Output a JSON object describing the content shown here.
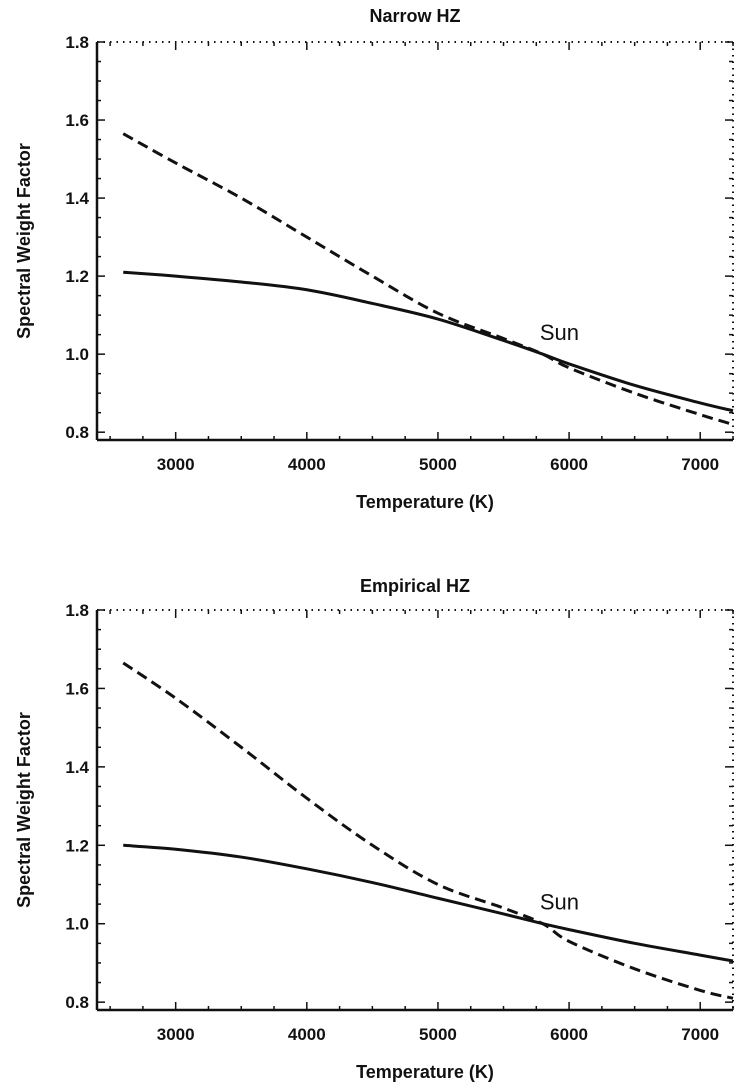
{
  "chart_data": [
    {
      "type": "line",
      "title": "Narrow HZ",
      "xlabel": "Temperature (K)",
      "ylabel": "Spectral Weight Factor",
      "xlim": [
        2400,
        7250
      ],
      "ylim": [
        0.78,
        1.8
      ],
      "xticks": [
        3000,
        4000,
        5000,
        6000,
        7000
      ],
      "yticks": [
        0.8,
        1.0,
        1.2,
        1.4,
        1.6,
        1.8
      ],
      "ytick_labels": [
        "0.8",
        "1.0",
        "1.2",
        "1.4",
        "1.6",
        "1.8"
      ],
      "grid": false,
      "series": [
        {
          "style": "solid",
          "x": [
            2600,
            3000,
            3500,
            4000,
            4500,
            5000,
            5500,
            5800,
            6000,
            6500,
            7000,
            7250
          ],
          "y": [
            1.21,
            1.2,
            1.185,
            1.165,
            1.13,
            1.09,
            1.035,
            1.0,
            0.975,
            0.92,
            0.875,
            0.855
          ]
        },
        {
          "style": "dashed",
          "x": [
            2600,
            3000,
            3500,
            4000,
            4500,
            5000,
            5500,
            5800,
            6000,
            6500,
            7000,
            7250
          ],
          "y": [
            1.565,
            1.49,
            1.4,
            1.3,
            1.2,
            1.105,
            1.04,
            1.0,
            0.965,
            0.9,
            0.845,
            0.82
          ]
        }
      ],
      "annotations": [
        {
          "text": "Sun",
          "x": 5800,
          "y": 1.0
        }
      ]
    },
    {
      "type": "line",
      "title": "Empirical HZ",
      "xlabel": "Temperature (K)",
      "ylabel": "Spectral Weight Factor",
      "xlim": [
        2400,
        7250
      ],
      "ylim": [
        0.78,
        1.8
      ],
      "xticks": [
        3000,
        4000,
        5000,
        6000,
        7000
      ],
      "yticks": [
        0.8,
        1.0,
        1.2,
        1.4,
        1.6,
        1.8
      ],
      "ytick_labels": [
        "0.8",
        "1.0",
        "1.2",
        "1.4",
        "1.6",
        "1.8"
      ],
      "grid": false,
      "series": [
        {
          "style": "solid",
          "x": [
            2600,
            3000,
            3500,
            4000,
            4500,
            5000,
            5500,
            5800,
            6000,
            6500,
            7000,
            7250
          ],
          "y": [
            1.2,
            1.19,
            1.17,
            1.14,
            1.105,
            1.065,
            1.025,
            1.0,
            0.985,
            0.95,
            0.92,
            0.905
          ]
        },
        {
          "style": "dashed",
          "x": [
            2600,
            3000,
            3500,
            4000,
            4500,
            5000,
            5500,
            5800,
            6000,
            6500,
            7000,
            7250
          ],
          "y": [
            1.665,
            1.575,
            1.45,
            1.32,
            1.2,
            1.1,
            1.04,
            1.0,
            0.955,
            0.885,
            0.83,
            0.81
          ]
        }
      ],
      "annotations": [
        {
          "text": "Sun",
          "x": 5800,
          "y": 1.0
        }
      ]
    }
  ]
}
